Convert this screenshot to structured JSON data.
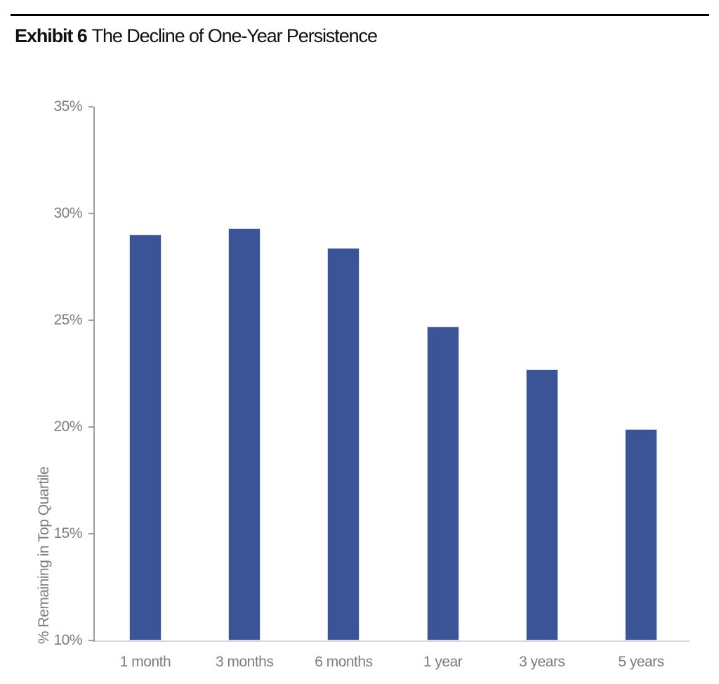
{
  "header": {
    "exhibit_label": "Exhibit 6",
    "title": "The Decline of One-Year Persistence"
  },
  "chart_data": {
    "type": "bar",
    "title": "Exhibit 6 The Decline of One-Year Persistence",
    "categories": [
      "1 month",
      "3 months",
      "6 months",
      "1 year",
      "3 years",
      "5 years"
    ],
    "values": [
      29.0,
      29.3,
      28.4,
      24.7,
      22.7,
      19.9
    ],
    "xlabel": "",
    "ylabel": "% Remaining in Top Quartile",
    "ylim": [
      10,
      35
    ],
    "yticks": [
      10,
      15,
      20,
      25,
      30,
      35
    ],
    "ytick_labels": [
      "10%",
      "15%",
      "20%",
      "25%",
      "30%",
      "35%"
    ],
    "grid": false,
    "legend": "none",
    "colors": {
      "bar": "#3B5497",
      "bar_edge": "#d6dcec",
      "axis": "#9e9e9e",
      "baseline": "#d9d9d9",
      "tick_label": "#7d7d7d",
      "title": "#111111",
      "header_rule": "#000000"
    }
  }
}
